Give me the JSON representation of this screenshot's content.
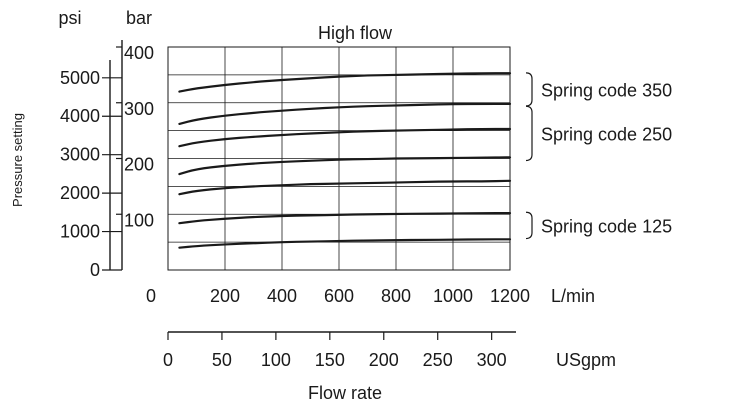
{
  "chart_data": {
    "type": "line",
    "title": "High flow",
    "xlabel": "Flow rate",
    "ylabel": "Pressure setting",
    "x_unit_primary": "L/min",
    "x_unit_secondary": "USgpm",
    "y_unit_primary": "bar",
    "y_unit_secondary": "psi",
    "xlim": [
      0,
      1200
    ],
    "ylim": [
      0,
      400
    ],
    "x_ticks_lmin": [
      "0",
      "200",
      "400",
      "600",
      "800",
      "1000",
      "1200"
    ],
    "x_ticks_usgpm": [
      "0",
      "50",
      "100",
      "150",
      "200",
      "250",
      "300"
    ],
    "y_ticks_bar": [
      "100",
      "200",
      "300",
      "400"
    ],
    "y_ticks_psi": [
      "0",
      "1000",
      "2000",
      "3000",
      "4000",
      "5000"
    ],
    "grid": true,
    "series_x": [
      40,
      100,
      200,
      300,
      400,
      500,
      600,
      700,
      800,
      900,
      1000,
      1100,
      1200
    ],
    "series": [
      {
        "values": [
          40,
          43,
          46,
          48,
          50,
          51,
          52,
          53,
          53.5,
          54,
          54.5,
          55,
          55
        ]
      },
      {
        "values": [
          84,
          88,
          92,
          95,
          97,
          98,
          99,
          100,
          100.5,
          101,
          101.5,
          102,
          102
        ]
      },
      {
        "values": [
          136,
          142,
          147,
          150,
          152,
          154,
          155,
          156,
          157,
          158,
          159,
          159,
          160
        ]
      },
      {
        "values": [
          172,
          181,
          187,
          191,
          194,
          196,
          198,
          199,
          200,
          200.5,
          201,
          201.5,
          202
        ]
      },
      {
        "values": [
          222,
          229,
          235,
          239,
          242,
          245,
          247,
          249,
          250,
          251,
          252,
          253,
          253
        ]
      },
      {
        "values": [
          262,
          270,
          277,
          282,
          286,
          289,
          292,
          294,
          295,
          296.5,
          297.5,
          298,
          298
        ]
      },
      {
        "values": [
          320,
          326,
          332,
          337,
          341,
          344,
          347,
          349,
          350,
          351,
          352,
          353,
          353
        ]
      }
    ],
    "annotations": [
      {
        "text": "Spring code 350",
        "range": [
          298,
          350
        ]
      },
      {
        "text": "Spring code 250",
        "range": [
          200,
          290
        ]
      },
      {
        "text": "Spring code 125",
        "range": [
          100,
          60
        ]
      }
    ],
    "colors": {
      "line": "#1a1a1a",
      "grid": "#1a1a1a",
      "text": "#1a1a1a"
    }
  }
}
